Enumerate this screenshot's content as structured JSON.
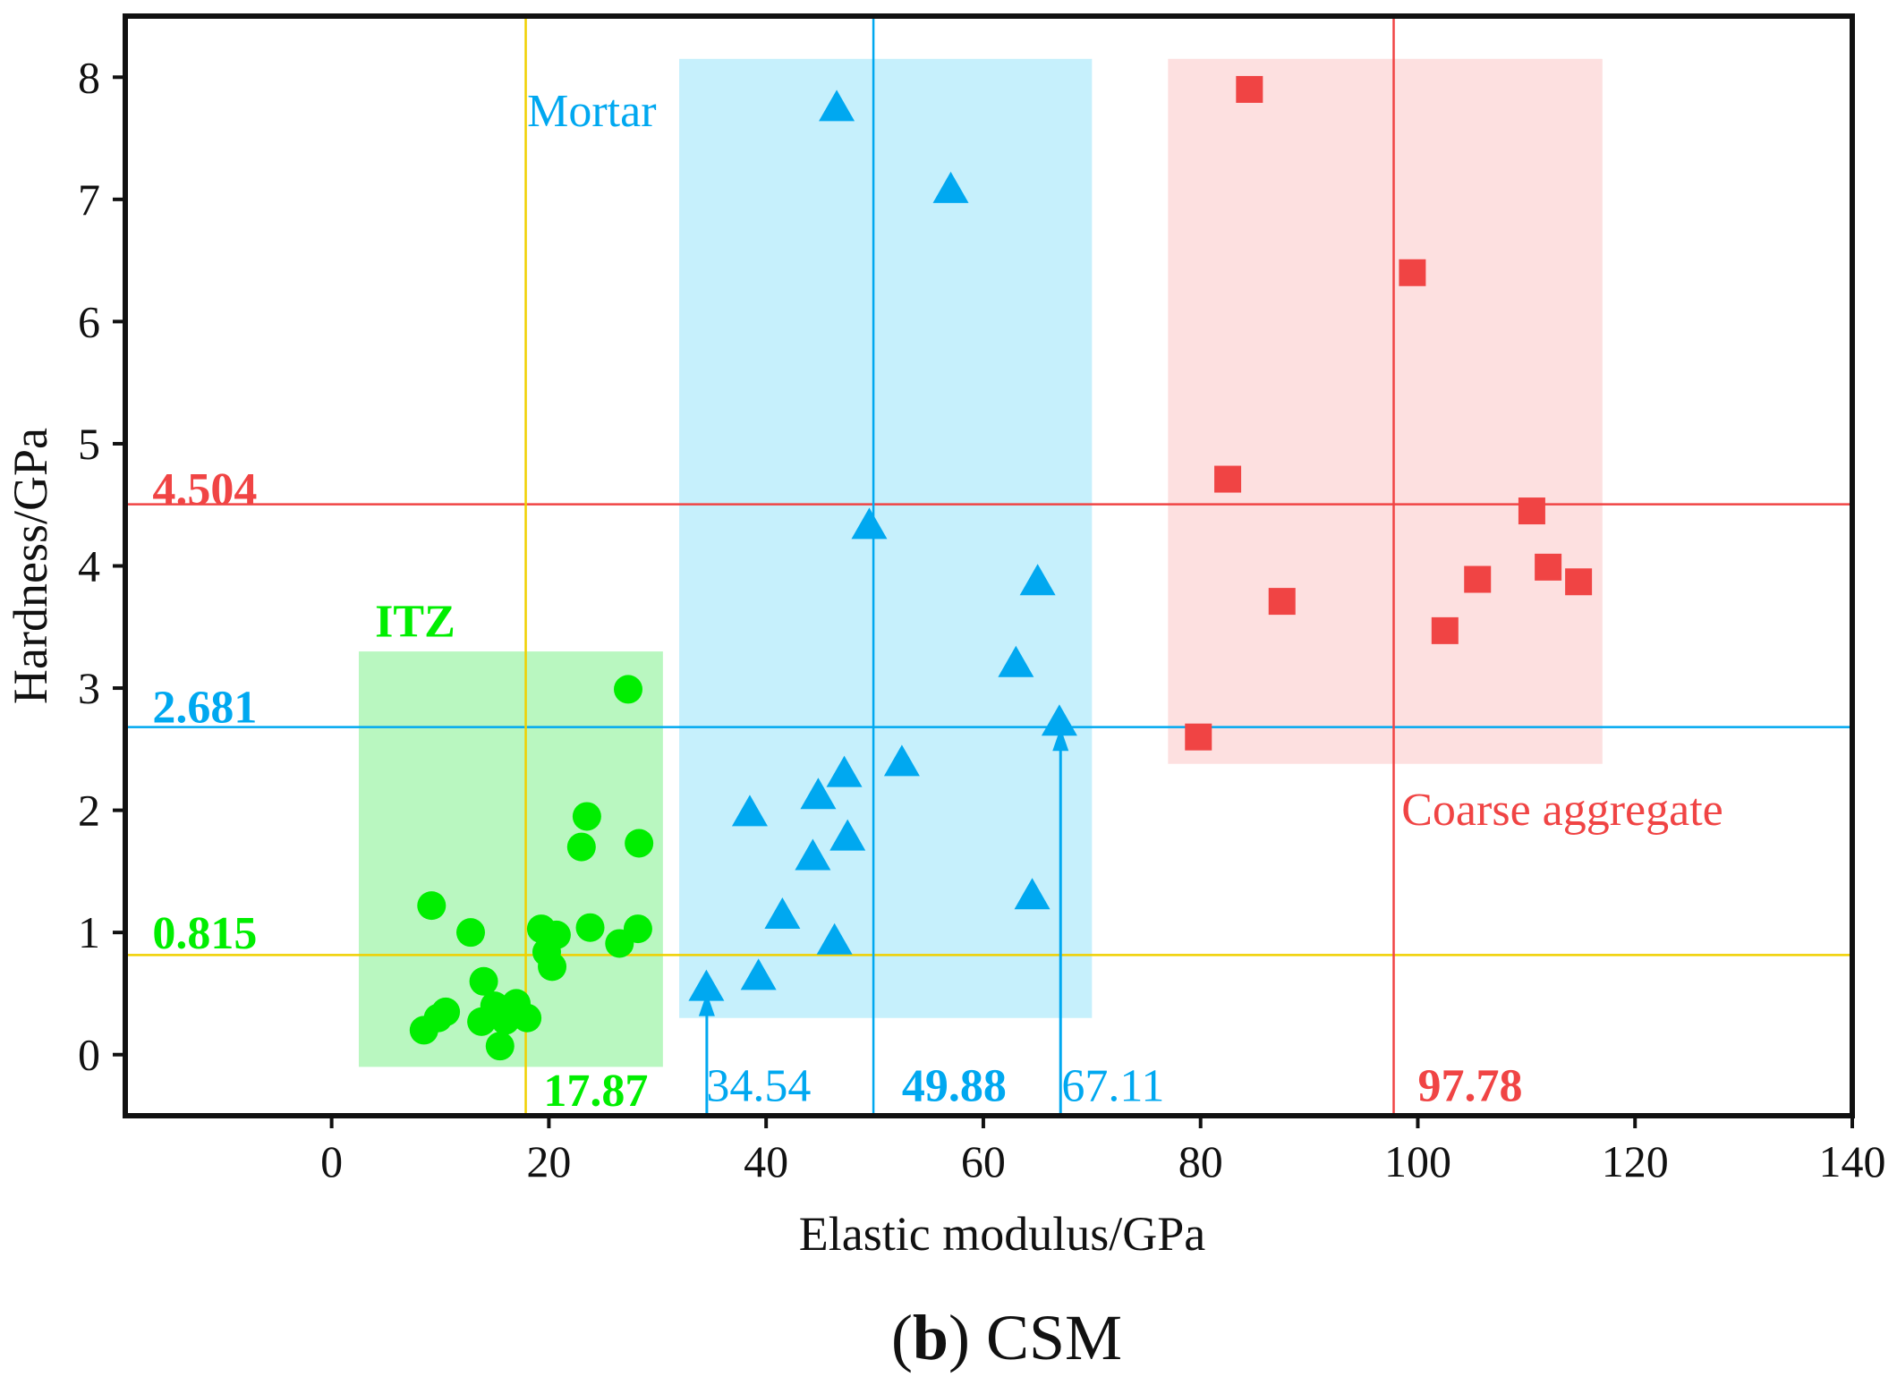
{
  "chart_data": {
    "type": "scatter",
    "xlabel": "Elastic modulus/GPa",
    "ylabel": "Hardness/GPa",
    "caption_letter": "b",
    "caption_text": " CSM",
    "xlim": [
      -19,
      140
    ],
    "ylim": [
      -0.5,
      8.5
    ],
    "xticks": [
      0,
      20,
      40,
      60,
      80,
      100,
      120,
      140
    ],
    "yticks": [
      0,
      1,
      2,
      3,
      4,
      5,
      6,
      7,
      8
    ],
    "grid": false,
    "colors": {
      "itz": "#00ee00",
      "mortar": "#00a8f0",
      "aggregate": "#f04444",
      "itz_line": "#f0d000",
      "itz_box": "#b9f7c0",
      "mortar_box": "#c6f0fc",
      "aggregate_box": "#fde0e0"
    },
    "series": [
      {
        "name": "ITZ",
        "marker": "circle",
        "color": "#00ee00",
        "box": {
          "x": [
            2.5,
            30.5
          ],
          "y": [
            -0.1,
            3.3
          ]
        },
        "points": [
          [
            27.3,
            2.99
          ],
          [
            23.5,
            1.95
          ],
          [
            23.0,
            1.7
          ],
          [
            28.3,
            1.73
          ],
          [
            9.2,
            1.22
          ],
          [
            12.8,
            1.0
          ],
          [
            19.3,
            1.03
          ],
          [
            20.7,
            0.98
          ],
          [
            23.8,
            1.04
          ],
          [
            28.2,
            1.03
          ],
          [
            26.5,
            0.91
          ],
          [
            19.8,
            0.84
          ],
          [
            20.3,
            0.72
          ],
          [
            14.0,
            0.6
          ],
          [
            10.5,
            0.35
          ],
          [
            9.8,
            0.3
          ],
          [
            13.8,
            0.27
          ],
          [
            15.0,
            0.4
          ],
          [
            16.0,
            0.28
          ],
          [
            17.0,
            0.42
          ],
          [
            18.0,
            0.3
          ],
          [
            8.5,
            0.2
          ],
          [
            15.5,
            0.07
          ]
        ]
      },
      {
        "name": "Mortar",
        "marker": "triangle",
        "color": "#00a8f0",
        "box": {
          "x": [
            32,
            70
          ],
          "y": [
            0.3,
            8.15
          ]
        },
        "points": [
          [
            46.5,
            7.75
          ],
          [
            57.0,
            7.08
          ],
          [
            49.5,
            4.33
          ],
          [
            65.0,
            3.87
          ],
          [
            63.0,
            3.2
          ],
          [
            67.0,
            2.72
          ],
          [
            52.5,
            2.39
          ],
          [
            47.2,
            2.3
          ],
          [
            44.8,
            2.12
          ],
          [
            38.5,
            1.98
          ],
          [
            47.5,
            1.78
          ],
          [
            44.3,
            1.62
          ],
          [
            64.5,
            1.3
          ],
          [
            41.5,
            1.14
          ],
          [
            46.3,
            0.93
          ],
          [
            39.3,
            0.64
          ],
          [
            34.5,
            0.55
          ]
        ]
      },
      {
        "name": "Coarse aggregate",
        "marker": "square",
        "color": "#f04444",
        "box": {
          "x": [
            77,
            117
          ],
          "y": [
            2.38,
            8.15
          ]
        },
        "points": [
          [
            84.5,
            7.9
          ],
          [
            99.5,
            6.4
          ],
          [
            82.5,
            4.71
          ],
          [
            110.5,
            4.45
          ],
          [
            112.0,
            3.99
          ],
          [
            105.5,
            3.89
          ],
          [
            114.8,
            3.87
          ],
          [
            87.5,
            3.71
          ],
          [
            102.5,
            3.47
          ],
          [
            79.8,
            2.6
          ]
        ]
      }
    ],
    "reference_lines": [
      {
        "axis": "y",
        "value": 4.504,
        "color": "#f04444"
      },
      {
        "axis": "y",
        "value": 2.681,
        "color": "#00a8f0"
      },
      {
        "axis": "y",
        "value": 0.815,
        "color": "#f0d000"
      },
      {
        "axis": "x",
        "value": 17.87,
        "color": "#f0d000"
      },
      {
        "axis": "x",
        "value": 49.88,
        "color": "#00a8f0"
      },
      {
        "axis": "x",
        "value": 97.78,
        "color": "#f04444"
      }
    ],
    "arrows": [
      {
        "x": 34.54,
        "to_y": 0.55,
        "color": "#00a8f0"
      },
      {
        "x": 67.11,
        "to_y": 2.72,
        "color": "#00a8f0"
      }
    ],
    "annotations": [
      {
        "text": "4.504",
        "x": -16.5,
        "y": 4.5,
        "anchor": "start",
        "color": "#f04444",
        "bold": true
      },
      {
        "text": "2.681",
        "x": -16.5,
        "y": 2.72,
        "anchor": "start",
        "color": "#00a8f0",
        "bold": true
      },
      {
        "text": "0.815",
        "x": -16.5,
        "y": 0.87,
        "anchor": "start",
        "color": "#00ee00",
        "bold": true
      },
      {
        "text": "ITZ",
        "x": 4.0,
        "y": 3.42,
        "anchor": "start",
        "color": "#00ee00",
        "bold": true
      },
      {
        "text": "Mortar",
        "x": 18.0,
        "y": 7.6,
        "anchor": "start",
        "color": "#00a8f0",
        "bold": false
      },
      {
        "text": "Coarse aggregate",
        "x": 98.5,
        "y": 1.88,
        "anchor": "start",
        "color": "#f04444",
        "bold": false
      },
      {
        "text": "17.87",
        "x": 19.5,
        "y": -0.42,
        "anchor": "start",
        "color": "#00ee00",
        "bold": true
      },
      {
        "text": "34.54",
        "x": 34.5,
        "y": -0.38,
        "anchor": "start",
        "color": "#00a8f0",
        "bold": false
      },
      {
        "text": "49.88",
        "x": 52.5,
        "y": -0.38,
        "anchor": "start",
        "color": "#00a8f0",
        "bold": true
      },
      {
        "text": "67.11",
        "x": 67.2,
        "y": -0.38,
        "anchor": "start",
        "color": "#00a8f0",
        "bold": false
      },
      {
        "text": "97.78",
        "x": 100.0,
        "y": -0.38,
        "anchor": "start",
        "color": "#f04444",
        "bold": true
      }
    ]
  }
}
